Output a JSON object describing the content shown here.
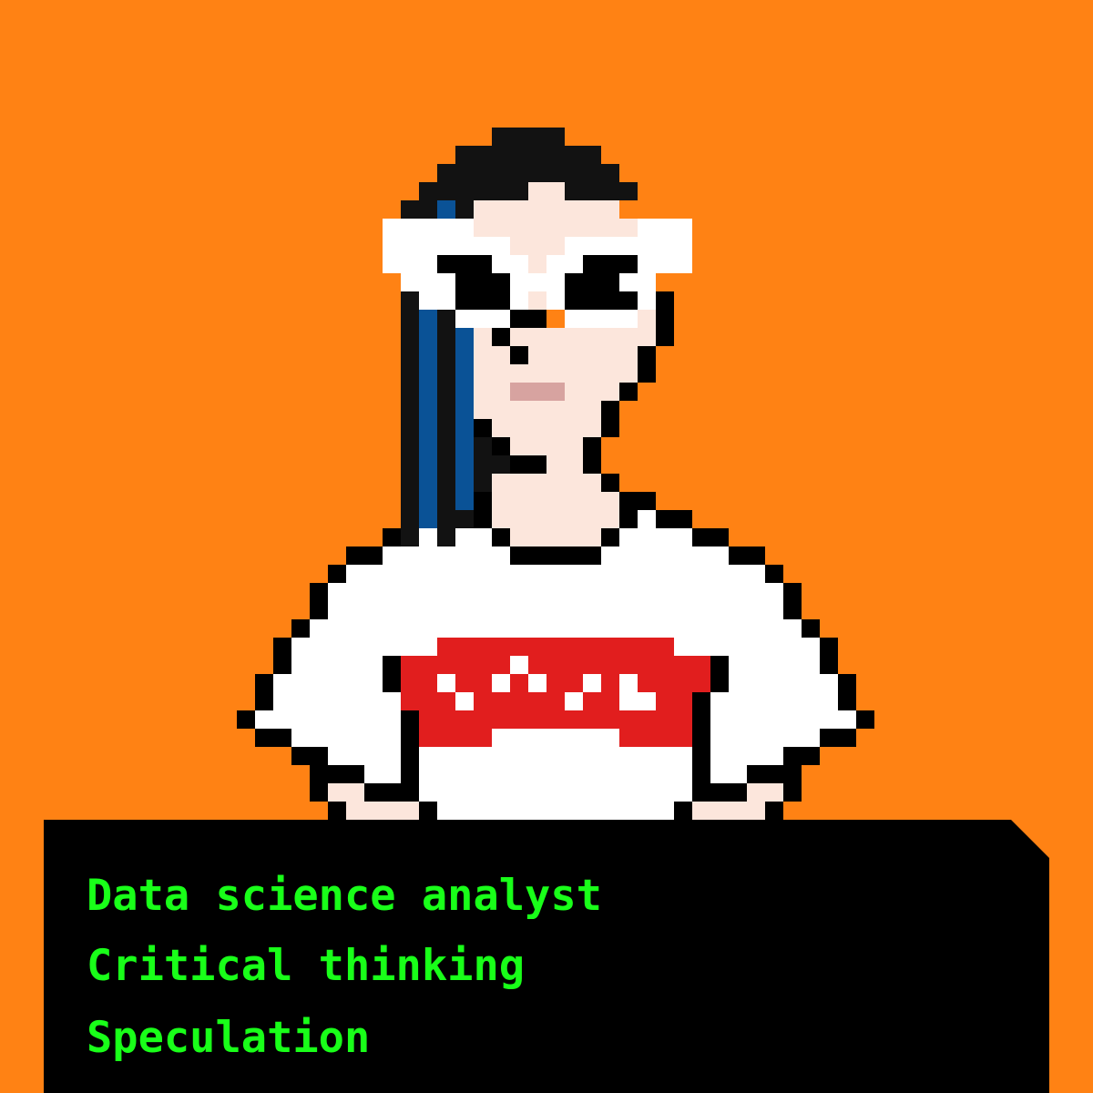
{
  "colors": {
    "background": "#ff8214",
    "panel": "#000000",
    "caption_text": "#19ff19"
  },
  "avatar": {
    "name": "pixel-art-character",
    "palette": {
      "B": "#000000",
      "H": "#121212",
      "U": "#0a5296",
      "S": "#fce6dc",
      "W": "#ffffff",
      "R": "#e11e1e",
      "L": "#d7a3a0"
    }
  },
  "caption": {
    "lines": [
      "Data science analyst",
      "Critical thinking",
      "Speculation"
    ]
  }
}
